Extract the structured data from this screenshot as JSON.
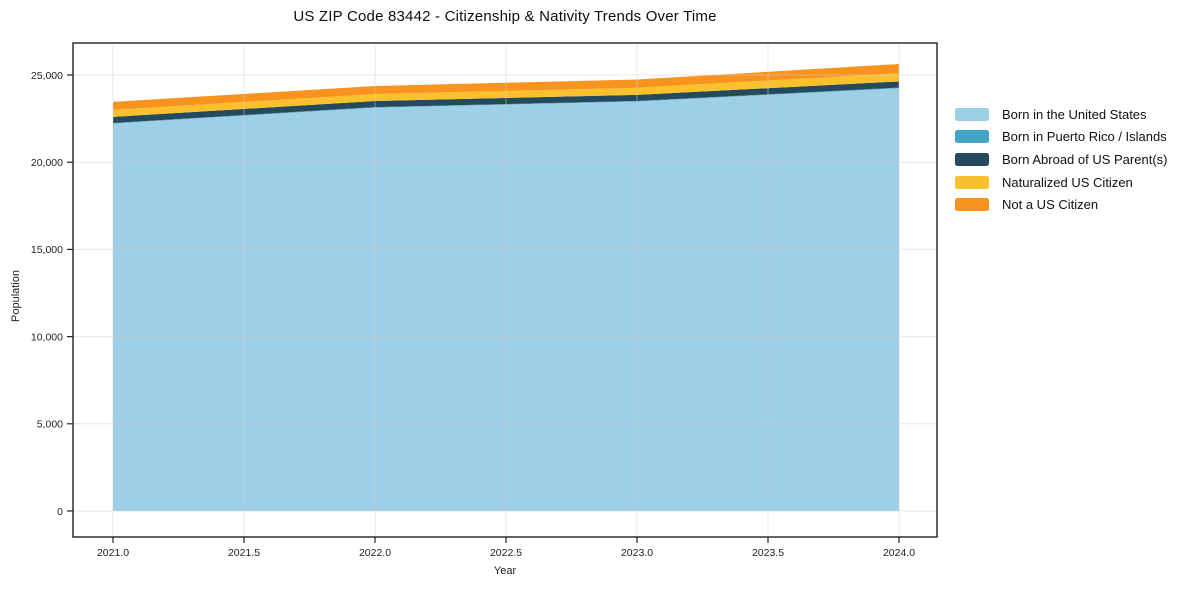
{
  "chart_data": {
    "type": "area",
    "stacked": true,
    "title": "US ZIP Code 83442 - Citizenship & Nativity Trends Over Time",
    "xlabel": "Year",
    "ylabel": "Population",
    "grid": true,
    "legend_position": "right-outside",
    "x": [
      2021,
      2022,
      2023,
      2024
    ],
    "xlim": [
      2020.85,
      2024.15
    ],
    "ylim": [
      -1300,
      26900
    ],
    "x_ticks": [
      2021.0,
      2021.5,
      2022.0,
      2022.5,
      2023.0,
      2023.5,
      2024.0
    ],
    "x_tick_labels": [
      "2021.0",
      "2021.5",
      "2022.0",
      "2022.5",
      "2023.0",
      "2023.5",
      "2024.0"
    ],
    "y_ticks": [
      0,
      5000,
      10000,
      15000,
      20000,
      25000
    ],
    "y_tick_labels": [
      "0",
      "5,000",
      "10,000",
      "15,000",
      "20,000",
      "25,000"
    ],
    "series": [
      {
        "name": "Born in the United States",
        "color": "#9DCFE6",
        "values": [
          22220,
          23130,
          23480,
          24240
        ]
      },
      {
        "name": "Born in Puerto Rico / Islands",
        "color": "#41A5C3",
        "values": [
          30,
          30,
          30,
          40
        ]
      },
      {
        "name": "Born Abroad of US Parent(s)",
        "color": "#25495D",
        "values": [
          350,
          350,
          350,
          350
        ]
      },
      {
        "name": "Naturalized US Citizen",
        "color": "#FBC02D",
        "values": [
          400,
          400,
          410,
          470
        ]
      },
      {
        "name": "Not a US Citizen",
        "color": "#F7931E",
        "values": [
          460,
          460,
          470,
          530
        ]
      }
    ],
    "totals": [
      23460,
      24370,
      24740,
      25630
    ],
    "colors": {
      "frame": "#222222",
      "gridline": "#cfcfcf",
      "tick_text": "#222222",
      "background": "#ffffff"
    }
  }
}
